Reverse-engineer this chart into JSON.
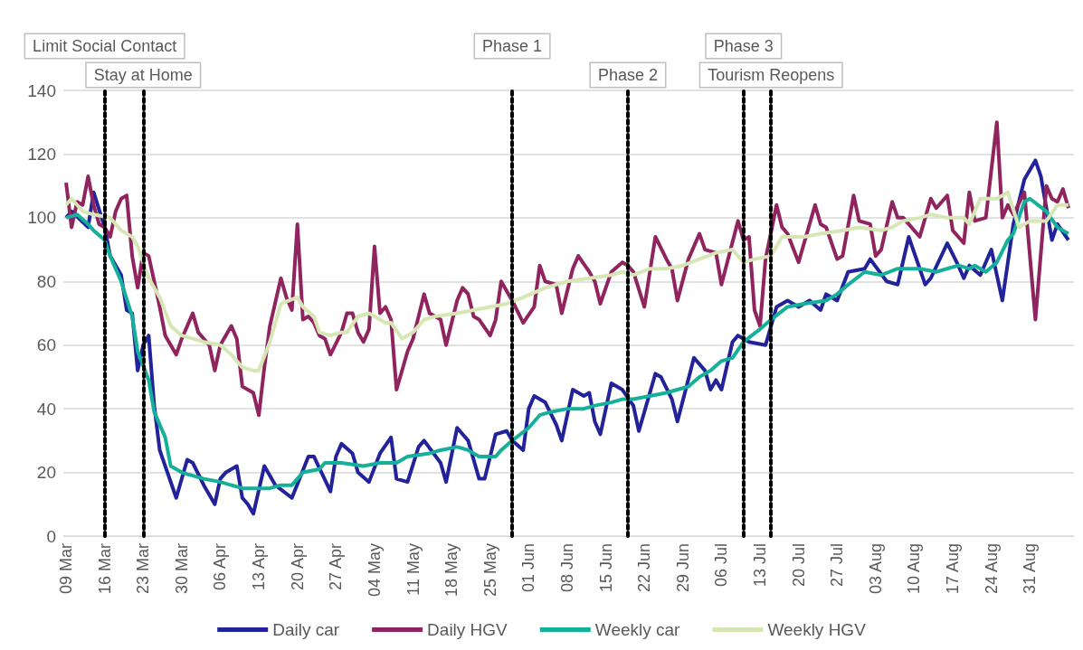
{
  "chart_data": {
    "type": "line",
    "xlim": [
      "--03-08T12:00",
      "--09-08"
    ],
    "xticks": [
      {
        "value": "--03-09",
        "label": "09 Mar"
      },
      {
        "value": "--03-16",
        "label": "16 Mar"
      },
      {
        "value": "--03-23",
        "label": "23 Mar"
      },
      {
        "value": "--03-30",
        "label": "30 Mar"
      },
      {
        "value": "--04-06",
        "label": "06 Apr"
      },
      {
        "value": "--04-13",
        "label": "13 Apr"
      },
      {
        "value": "--04-20",
        "label": "20 Apr"
      },
      {
        "value": "--04-27",
        "label": "27 Apr"
      },
      {
        "value": "--05-04",
        "label": "04 May"
      },
      {
        "value": "--05-11",
        "label": "11 May"
      },
      {
        "value": "--05-18",
        "label": "18 May"
      },
      {
        "value": "--05-25",
        "label": "25 May"
      },
      {
        "value": "--06-01",
        "label": "01 Jun"
      },
      {
        "value": "--06-08",
        "label": "08 Jun"
      },
      {
        "value": "--06-15",
        "label": "15 Jun"
      },
      {
        "value": "--06-22",
        "label": "22 Jun"
      },
      {
        "value": "--06-29",
        "label": "29 Jun"
      },
      {
        "value": "--07-06",
        "label": "06 Jul"
      },
      {
        "value": "--07-13",
        "label": "13 Jul"
      },
      {
        "value": "--07-20",
        "label": "20 Jul"
      },
      {
        "value": "--07-27",
        "label": "27 Jul"
      },
      {
        "value": "--08-03",
        "label": "03 Aug"
      },
      {
        "value": "--08-10",
        "label": "10 Aug"
      },
      {
        "value": "--08-17",
        "label": "17 Aug"
      },
      {
        "value": "--08-24",
        "label": "24 Aug"
      },
      {
        "value": "--08-31",
        "label": "31 Aug"
      }
    ],
    "ylim": [
      0,
      140
    ],
    "yticks": [
      0,
      20,
      40,
      60,
      80,
      100,
      120,
      140
    ],
    "grid": "y",
    "legend": "bottom",
    "marker": "none",
    "ref_lines": [
      {
        "axis": "x",
        "value": "--03-16",
        "label": "Limit Social Contact",
        "color": "#000000",
        "line_style": "dotted"
      },
      {
        "axis": "x",
        "value": "--03-23",
        "label": "Stay at Home",
        "color": "#000000",
        "line_style": "dotted"
      },
      {
        "axis": "x",
        "value": "--05-29",
        "label": "Phase 1",
        "color": "#000000",
        "line_style": "dotted"
      },
      {
        "axis": "x",
        "value": "--06-19",
        "label": "Phase 2",
        "color": "#000000",
        "line_style": "dotted"
      },
      {
        "axis": "x",
        "value": "--07-10",
        "label": "Phase 3",
        "color": "#000000",
        "line_style": "dotted"
      },
      {
        "axis": "x",
        "value": "--07-15",
        "label": "Tourism Reopens",
        "color": "#000000",
        "line_style": "dotted"
      }
    ],
    "series": [
      {
        "name": "Daily car",
        "color": "#22229a",
        "x": [
          "--03-09",
          "--03-10",
          "--03-13",
          "--03-14",
          "--03-16",
          "--03-17",
          "--03-19",
          "--03-20",
          "--03-21",
          "--03-22",
          "--03-23",
          "--03-24",
          "--03-25",
          "--03-26",
          "--03-29",
          "--03-31",
          "--04-01",
          "--04-03",
          "--04-05",
          "--04-06",
          "--04-07",
          "--04-09",
          "--04-10",
          "--04-11",
          "--04-12",
          "--04-14",
          "--04-16",
          "--04-19",
          "--04-22",
          "--04-23",
          "--04-26",
          "--04-27",
          "--04-28",
          "--04-30",
          "--05-01",
          "--05-03",
          "--05-05",
          "--05-07",
          "--05-08",
          "--05-10",
          "--05-12",
          "--05-13",
          "--05-16",
          "--05-17",
          "--05-19",
          "--05-21",
          "--05-23",
          "--05-24",
          "--05-26",
          "--05-28",
          "--05-29",
          "--05-31",
          "--06-01",
          "--06-02",
          "--06-04",
          "--06-06",
          "--06-07",
          "--06-09",
          "--06-11",
          "--06-12",
          "--06-13",
          "--06-14",
          "--06-16",
          "--06-18",
          "--06-20",
          "--06-21",
          "--06-24",
          "--06-25",
          "--06-27",
          "--06-28",
          "--07-01",
          "--07-03",
          "--07-04",
          "--07-05",
          "--07-06",
          "--07-08",
          "--07-09",
          "--07-11",
          "--07-14",
          "--07-16",
          "--07-18",
          "--07-20",
          "--07-22",
          "--07-24",
          "--07-25",
          "--07-27",
          "--07-29",
          "--08-01",
          "--08-02",
          "--08-05",
          "--08-07",
          "--08-09",
          "--08-12",
          "--08-13",
          "--08-16",
          "--08-18",
          "--08-19",
          "--08-20",
          "--08-22",
          "--08-24",
          "--08-26",
          "--08-28",
          "--08-30",
          "--09-01",
          "--09-02",
          "--09-04",
          "--09-05",
          "--09-07"
        ],
        "values": [
          100,
          102,
          97,
          108,
          97,
          88,
          82,
          71,
          70,
          52,
          60,
          63,
          41,
          27,
          12,
          24,
          23,
          16,
          10,
          18,
          20,
          22,
          12,
          10,
          7,
          22,
          16,
          12,
          25,
          25,
          14,
          25,
          29,
          26,
          20,
          17,
          26,
          31,
          18,
          17,
          28,
          30,
          23,
          17,
          34,
          30,
          18,
          18,
          32,
          33,
          30,
          27,
          40,
          44,
          42,
          35,
          30,
          46,
          44,
          45,
          36,
          32,
          48,
          46,
          41,
          33,
          51,
          50,
          43,
          36,
          56,
          52,
          46,
          49,
          46,
          61,
          63,
          61,
          60,
          72,
          74,
          72,
          74,
          71,
          76,
          74,
          83,
          84,
          87,
          80,
          79,
          94,
          79,
          81,
          92,
          85,
          81,
          85,
          82,
          90,
          74,
          98,
          112,
          118,
          113,
          93,
          98,
          93
        ]
      },
      {
        "name": "Daily HGV",
        "color": "#90245f",
        "x": [
          "--03-09",
          "--03-10",
          "--03-11",
          "--03-12",
          "--03-13",
          "--03-14",
          "--03-15",
          "--03-16",
          "--03-17",
          "--03-18",
          "--03-19",
          "--03-20",
          "--03-21",
          "--03-22",
          "--03-23",
          "--03-24",
          "--03-26",
          "--03-27",
          "--03-29",
          "--03-30",
          "--04-01",
          "--04-02",
          "--04-04",
          "--04-05",
          "--04-06",
          "--04-08",
          "--04-09",
          "--04-10",
          "--04-11",
          "--04-12",
          "--04-13",
          "--04-14",
          "--04-15",
          "--04-17",
          "--04-18",
          "--04-19",
          "--04-20",
          "--04-21",
          "--04-22",
          "--04-23",
          "--04-24",
          "--04-25",
          "--04-26",
          "--04-28",
          "--04-29",
          "--04-30",
          "--05-01",
          "--05-02",
          "--05-03",
          "--05-04",
          "--05-05",
          "--05-06",
          "--05-07",
          "--05-08",
          "--05-10",
          "--05-11",
          "--05-13",
          "--05-14",
          "--05-16",
          "--05-17",
          "--05-19",
          "--05-20",
          "--05-21",
          "--05-22",
          "--05-23",
          "--05-25",
          "--05-26",
          "--05-27",
          "--05-29",
          "--05-31",
          "--06-02",
          "--06-03",
          "--06-04",
          "--06-06",
          "--06-07",
          "--06-09",
          "--06-10",
          "--06-12",
          "--06-13",
          "--06-14",
          "--06-16",
          "--06-18",
          "--06-19",
          "--06-20",
          "--06-22",
          "--06-24",
          "--06-26",
          "--06-27",
          "--06-28",
          "--06-30",
          "--07-02",
          "--07-03",
          "--07-05",
          "--07-06",
          "--07-09",
          "--07-10",
          "--07-11",
          "--07-12",
          "--07-13",
          "--07-14",
          "--07-16",
          "--07-17",
          "--07-18",
          "--07-20",
          "--07-23",
          "--07-24",
          "--07-25",
          "--07-27",
          "--07-28",
          "--07-30",
          "--07-31",
          "--08-02",
          "--08-03",
          "--08-04",
          "--08-06",
          "--08-07",
          "--08-08",
          "--08-11",
          "--08-13",
          "--08-14",
          "--08-16",
          "--08-17",
          "--08-19",
          "--08-20",
          "--08-21",
          "--08-23",
          "--08-25",
          "--08-26",
          "--08-27",
          "--08-28",
          "--08-30",
          "--09-01",
          "--09-03",
          "--09-04",
          "--09-05",
          "--09-06",
          "--09-07"
        ],
        "values": [
          111,
          97,
          105,
          104,
          113,
          104,
          98,
          97,
          94,
          102,
          106,
          107,
          88,
          78,
          89,
          88,
          72,
          63,
          57,
          62,
          70,
          64,
          60,
          52,
          60,
          66,
          62,
          47,
          46,
          45,
          38,
          53,
          66,
          81,
          75,
          71,
          98,
          68,
          69,
          67,
          63,
          62,
          57,
          64,
          70,
          70,
          64,
          61,
          65,
          91,
          70,
          72,
          68,
          46,
          58,
          62,
          76,
          70,
          68,
          60,
          74,
          78,
          76,
          69,
          68,
          63,
          68,
          80,
          74,
          67,
          72,
          85,
          80,
          79,
          70,
          84,
          88,
          83,
          80,
          73,
          83,
          86,
          85,
          83,
          72,
          94,
          87,
          84,
          74,
          87,
          95,
          90,
          89,
          79,
          99,
          93,
          94,
          71,
          66,
          87,
          104,
          97,
          95,
          86,
          104,
          98,
          97,
          87,
          88,
          107,
          99,
          98,
          88,
          90,
          105,
          100,
          100,
          94,
          106,
          103,
          107,
          96,
          92,
          108,
          99,
          100,
          130,
          100,
          104,
          101,
          108,
          68,
          110,
          106,
          105,
          109,
          103
        ]
      },
      {
        "name": "Weekly car",
        "color": "#14b09a",
        "x": [
          "--03-09",
          "--03-11",
          "--03-13",
          "--03-14",
          "--03-16",
          "--03-17",
          "--03-19",
          "--03-21",
          "--03-22",
          "--03-24",
          "--03-25",
          "--03-27",
          "--03-28",
          "--03-30",
          "--04-03",
          "--04-06",
          "--04-10",
          "--04-13",
          "--04-15",
          "--04-17",
          "--04-19",
          "--04-21",
          "--04-24",
          "--04-25",
          "--04-28",
          "--05-02",
          "--05-05",
          "--05-08",
          "--05-10",
          "--05-14",
          "--05-16",
          "--05-19",
          "--05-21",
          "--05-23",
          "--05-26",
          "--05-27",
          "--05-29",
          "--06-01",
          "--06-03",
          "--06-05",
          "--06-08",
          "--06-11",
          "--06-13",
          "--06-16",
          "--06-18",
          "--06-20",
          "--06-23",
          "--06-26",
          "--06-30",
          "--07-02",
          "--07-04",
          "--07-06",
          "--07-08",
          "--07-10",
          "--07-13",
          "--07-15",
          "--07-18",
          "--07-21",
          "--07-25",
          "--07-27",
          "--07-29",
          "--08-01",
          "--08-04",
          "--08-07",
          "--08-11",
          "--08-14",
          "--08-18",
          "--08-20",
          "--08-21",
          "--08-23",
          "--08-25",
          "--08-27",
          "--08-28",
          "--08-30",
          "--08-31",
          "--09-03",
          "--09-05",
          "--09-07"
        ],
        "values": [
          100,
          101,
          98,
          96,
          93,
          88,
          80,
          69,
          58,
          49,
          39,
          31,
          22,
          20,
          18,
          17,
          15,
          15,
          15,
          16,
          16,
          20,
          21,
          23,
          23,
          22,
          23,
          23,
          25,
          26,
          27,
          28,
          27,
          25,
          25,
          27,
          30,
          34,
          38,
          39,
          40,
          40,
          41,
          42,
          43,
          43,
          44,
          45,
          47,
          50,
          52,
          55,
          56,
          61,
          65,
          68,
          72,
          73,
          74,
          76,
          79,
          83,
          82,
          84,
          84,
          83,
          85,
          84,
          85,
          83,
          86,
          93,
          95,
          105,
          106,
          102,
          97,
          95
        ]
      },
      {
        "name": "Weekly HGV",
        "color": "#d6e6b5",
        "x": [
          "--03-09",
          "--03-10",
          "--03-12",
          "--03-14",
          "--03-17",
          "--03-19",
          "--03-21",
          "--03-22",
          "--03-24",
          "--03-26",
          "--03-28",
          "--03-30",
          "--04-03",
          "--04-06",
          "--04-08",
          "--04-10",
          "--04-12",
          "--04-13",
          "--04-15",
          "--04-17",
          "--04-20",
          "--04-21",
          "--04-23",
          "--04-24",
          "--04-26",
          "--04-28",
          "--04-29",
          "--05-01",
          "--05-03",
          "--05-04",
          "--05-06",
          "--05-07",
          "--05-09",
          "--05-11",
          "--05-13",
          "--05-15",
          "--05-19",
          "--05-22",
          "--05-25",
          "--05-28",
          "--05-31",
          "--06-04",
          "--06-08",
          "--06-12",
          "--06-16",
          "--06-18",
          "--06-20",
          "--06-23",
          "--06-26",
          "--06-29",
          "--07-02",
          "--07-05",
          "--07-08",
          "--07-10",
          "--07-12",
          "--07-15",
          "--07-17",
          "--07-19",
          "--07-21",
          "--07-24",
          "--07-28",
          "--07-31",
          "--08-04",
          "--08-06",
          "--08-08",
          "--08-11",
          "--08-13",
          "--08-16",
          "--08-19",
          "--08-20",
          "--08-22",
          "--08-25",
          "--08-27",
          "--08-29",
          "--08-31",
          "--09-03",
          "--09-05",
          "--09-07"
        ],
        "values": [
          104,
          106,
          102,
          101,
          100,
          96,
          94,
          91,
          81,
          75,
          66,
          63,
          61,
          60,
          57,
          53,
          52,
          52,
          61,
          73,
          75,
          72,
          69,
          64,
          63,
          64,
          64,
          69,
          70,
          69,
          67,
          67,
          62,
          64,
          68,
          69,
          70,
          71,
          72,
          73,
          75,
          78,
          80,
          81,
          82,
          83,
          82,
          84,
          84,
          85,
          87,
          89,
          90,
          86,
          87,
          88,
          94,
          94,
          94,
          95,
          96,
          97,
          96,
          97,
          99,
          100,
          101,
          100,
          100,
          98,
          106,
          106,
          108,
          97,
          99,
          99,
          104,
          104
        ]
      }
    ]
  }
}
